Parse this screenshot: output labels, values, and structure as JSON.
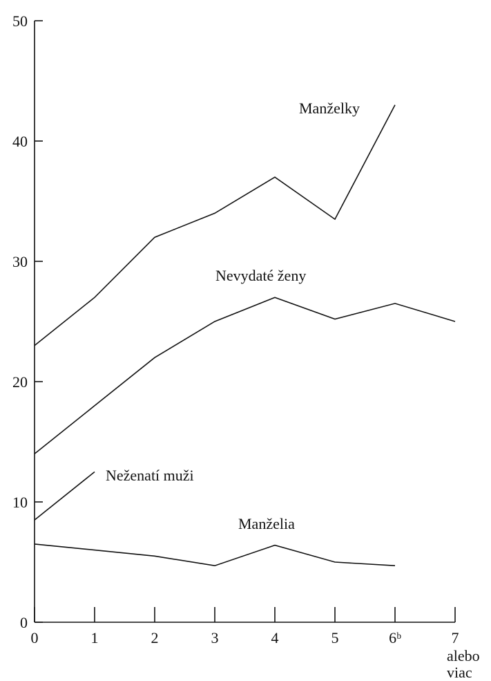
{
  "chart_data": {
    "type": "line",
    "x": [
      0,
      1,
      2,
      3,
      4,
      5,
      6,
      7
    ],
    "xlim": [
      0,
      7
    ],
    "xticks": [
      0,
      1,
      2,
      3,
      4,
      5,
      {
        "value": 6,
        "label": "6ᵇ"
      },
      7
    ],
    "xtick_note": [
      "alebo",
      "viac"
    ],
    "ylim": [
      0,
      50
    ],
    "yticks": [
      0,
      10,
      20,
      30,
      40,
      50
    ],
    "series": [
      {
        "name": "Manželky",
        "color": "#111111",
        "values": [
          23,
          27,
          32,
          34,
          37,
          33.5,
          43,
          null
        ]
      },
      {
        "name": "Nevydaté ženy",
        "color": "#111111",
        "values": [
          14,
          18,
          22,
          25,
          27,
          25.2,
          26.5,
          25
        ]
      },
      {
        "name": "Neženatí muži",
        "color": "#111111",
        "values": [
          8.5,
          12.5,
          null,
          null,
          null,
          null,
          null,
          null
        ]
      },
      {
        "name": "Manželia",
        "color": "#111111",
        "values": [
          6.5,
          6,
          5.5,
          4.7,
          6.4,
          5,
          4.7,
          null
        ]
      }
    ]
  }
}
